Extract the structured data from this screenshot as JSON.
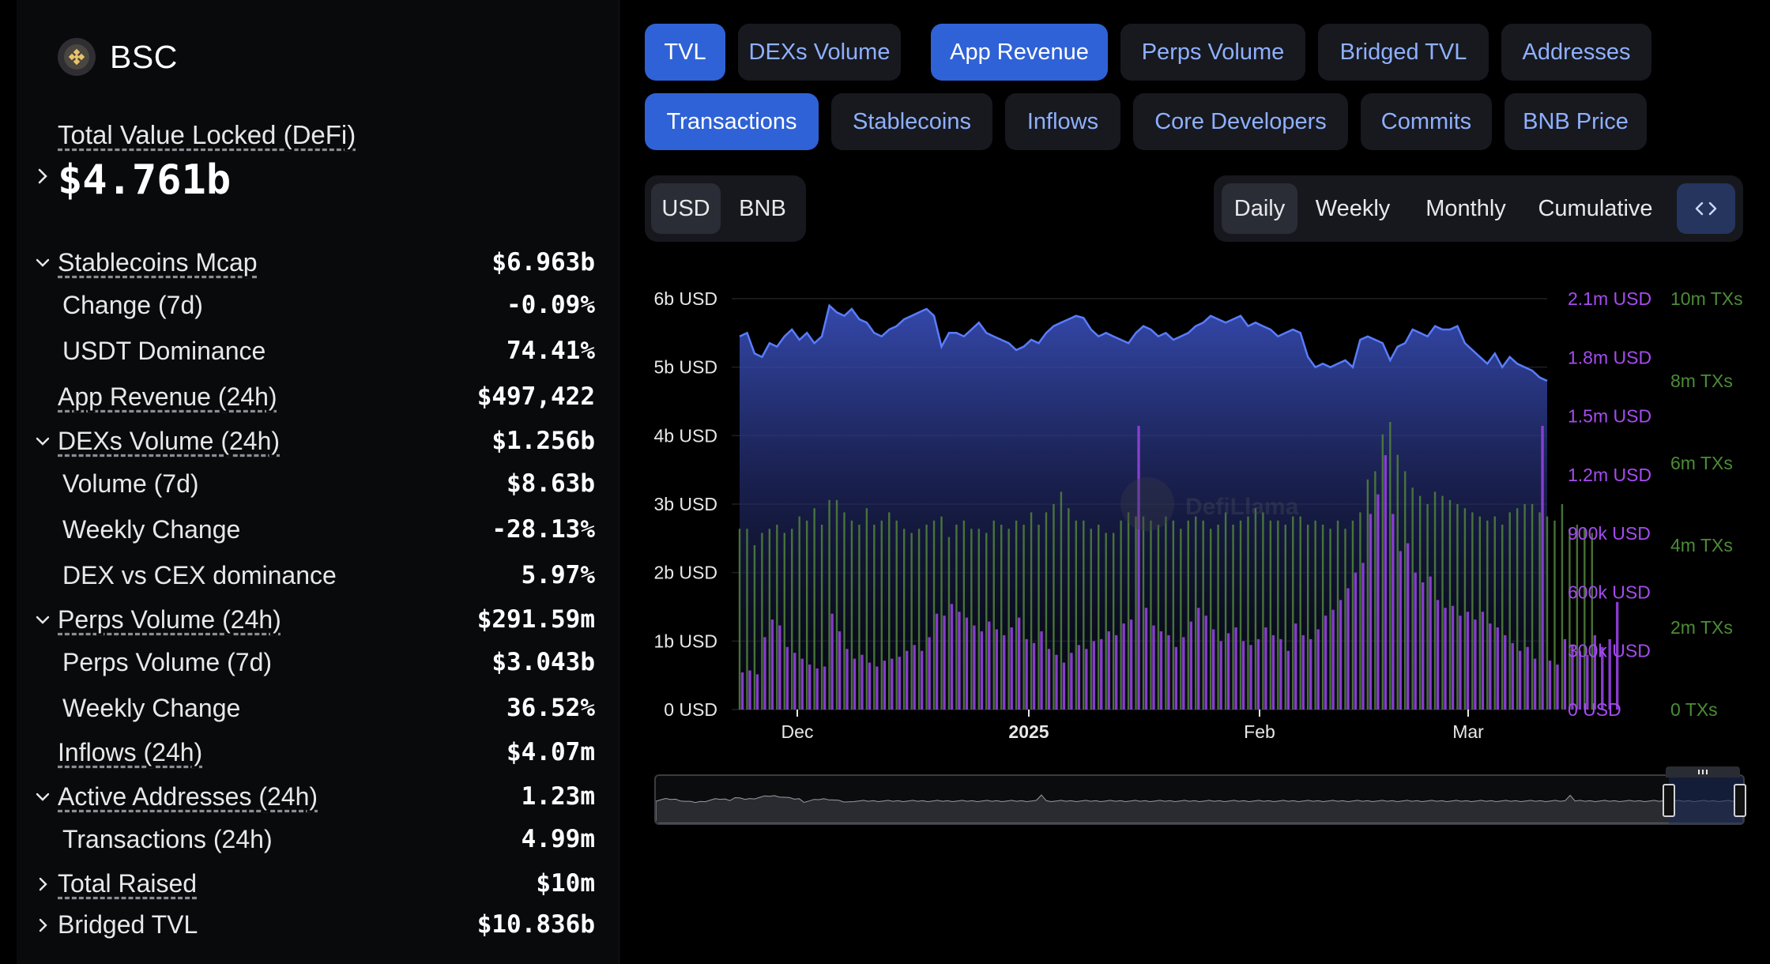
{
  "sidebar": {
    "chain_name": "BSC",
    "tvl_label": "Total Value Locked (DeFi)",
    "tvl_value": "$4.761b",
    "rows": [
      {
        "label": "Stablecoins Mcap",
        "value": "$6.963b",
        "type": "parent-open"
      },
      {
        "label": "Change (7d)",
        "value": "-0.09%",
        "type": "child"
      },
      {
        "label": "USDT Dominance",
        "value": "74.41%",
        "type": "child"
      },
      {
        "label": "App Revenue (24h)",
        "value": "$497,422",
        "type": "plain"
      },
      {
        "label": "DEXs Volume (24h)",
        "value": "$1.256b",
        "type": "parent-open"
      },
      {
        "label": "Volume (7d)",
        "value": "$8.63b",
        "type": "child"
      },
      {
        "label": "Weekly Change",
        "value": "-28.13%",
        "type": "child"
      },
      {
        "label": "DEX vs CEX dominance",
        "value": "5.97%",
        "type": "child"
      },
      {
        "label": "Perps Volume (24h)",
        "value": "$291.59m",
        "type": "parent-open"
      },
      {
        "label": "Perps Volume (7d)",
        "value": "$3.043b",
        "type": "child"
      },
      {
        "label": "Weekly Change",
        "value": "36.52%",
        "type": "child"
      },
      {
        "label": "Inflows (24h)",
        "value": "$4.07m",
        "type": "plain"
      },
      {
        "label": "Active Addresses (24h)",
        "value": "1.23m",
        "type": "parent-open"
      },
      {
        "label": "Transactions (24h)",
        "value": "4.99m",
        "type": "child"
      },
      {
        "label": "Total Raised",
        "value": "$10m",
        "type": "parent-closed"
      },
      {
        "label": "Bridged TVL",
        "value": "$10.836b",
        "type": "parent-closed-plain"
      }
    ]
  },
  "metric_tabs": [
    {
      "label": "TVL",
      "active": true
    },
    {
      "label": "DEXs Volume",
      "active": false
    },
    {
      "label": "App Revenue",
      "active": true
    },
    {
      "label": "Perps Volume",
      "active": false
    },
    {
      "label": "Bridged TVL",
      "active": false
    },
    {
      "label": "Addresses",
      "active": false
    },
    {
      "label": "Transactions",
      "active": true
    },
    {
      "label": "Stablecoins",
      "active": false
    },
    {
      "label": "Inflows",
      "active": false
    },
    {
      "label": "Core Developers",
      "active": false
    },
    {
      "label": "Commits",
      "active": false
    },
    {
      "label": "BNB Price",
      "active": false
    }
  ],
  "denomination": {
    "options": [
      "USD",
      "BNB"
    ],
    "selected": "USD"
  },
  "granularity": {
    "options": [
      "Daily",
      "Weekly",
      "Monthly",
      "Cumulative"
    ],
    "selected": "Daily",
    "embed_icon": "code-icon"
  },
  "colors": {
    "tvl": "#4f6fe8",
    "revenue": "#9b3fe0",
    "transactions": "#4f7d3a",
    "accent": "#2f62d6"
  },
  "chart_data": {
    "type": "area",
    "watermark": "DefiLlama",
    "x_ticks": [
      "Dec",
      "2025",
      "Feb",
      "Mar"
    ],
    "axes": {
      "tvl": {
        "ticks": [
          "0 USD",
          "1b USD",
          "2b USD",
          "3b USD",
          "4b USD",
          "5b USD",
          "6b USD"
        ],
        "ylim": [
          0,
          6000000000
        ]
      },
      "revenue": {
        "ticks": [
          "0 USD",
          "300k USD",
          "600k USD",
          "900k USD",
          "1.2m USD",
          "1.5m USD",
          "1.8m USD",
          "2.1m USD"
        ],
        "ylim": [
          0,
          2100000
        ]
      },
      "transactions": {
        "ticks": [
          "0 TXs",
          "2m TXs",
          "4m TXs",
          "6m TXs",
          "8m TXs",
          "10m TXs"
        ],
        "ylim": [
          0,
          10000000
        ]
      }
    },
    "series": [
      {
        "name": "TVL",
        "unit": "USD",
        "values": [
          5.45,
          5.5,
          5.2,
          5.15,
          5.35,
          5.3,
          5.45,
          5.55,
          5.4,
          5.5,
          5.35,
          5.45,
          5.9,
          5.8,
          5.75,
          5.85,
          5.7,
          5.65,
          5.5,
          5.45,
          5.55,
          5.6,
          5.7,
          5.75,
          5.8,
          5.85,
          5.75,
          5.3,
          5.5,
          5.5,
          5.45,
          5.55,
          5.65,
          5.5,
          5.45,
          5.4,
          5.35,
          5.25,
          5.3,
          5.4,
          5.35,
          5.5,
          5.6,
          5.65,
          5.7,
          5.75,
          5.72,
          5.55,
          5.45,
          5.5,
          5.45,
          5.4,
          5.35,
          5.5,
          5.6,
          5.55,
          5.45,
          5.5,
          5.4,
          5.45,
          5.5,
          5.6,
          5.65,
          5.75,
          5.7,
          5.65,
          5.7,
          5.75,
          5.6,
          5.65,
          5.6,
          5.55,
          5.45,
          5.5,
          5.55,
          5.5,
          5.15,
          5.0,
          5.05,
          5.0,
          5.05,
          5.1,
          5.0,
          5.4,
          5.45,
          5.4,
          5.35,
          5.1,
          5.3,
          5.35,
          5.55,
          5.5,
          5.45,
          5.6,
          5.55,
          5.55,
          5.6,
          5.35,
          5.25,
          5.15,
          5.05,
          5.2,
          5.0,
          5.15,
          5.05,
          5.0,
          4.95,
          4.85,
          4.8
        ]
      },
      {
        "name": "App Revenue",
        "unit": "USD",
        "values": [
          190,
          200,
          180,
          370,
          460,
          430,
          320,
          290,
          260,
          230,
          210,
          220,
          490,
          400,
          310,
          260,
          280,
          240,
          220,
          250,
          260,
          270,
          300,
          330,
          300,
          370,
          490,
          480,
          540,
          500,
          470,
          430,
          400,
          450,
          410,
          380,
          420,
          470,
          360,
          340,
          400,
          310,
          280,
          240,
          290,
          330,
          310,
          350,
          360,
          400,
          380,
          440,
          460,
          1450,
          520,
          430,
          400,
          380,
          320,
          370,
          450,
          520,
          480,
          410,
          350,
          390,
          420,
          350,
          330,
          360,
          420,
          380,
          360,
          300,
          440,
          380,
          360,
          410,
          480,
          510,
          560,
          620,
          700,
          750,
          1000,
          1100,
          1300,
          1000,
          810,
          850,
          700,
          650,
          680,
          560,
          520,
          530,
          480,
          500,
          460,
          500,
          440,
          420,
          380,
          340,
          300,
          320,
          260,
          1450,
          250,
          230,
          360,
          330,
          300,
          280,
          380,
          320,
          360,
          550
        ]
      },
      {
        "name": "Transactions",
        "unit": "TXs",
        "values": [
          4.4,
          4.4,
          4.0,
          4.3,
          4.4,
          4.5,
          4.3,
          4.4,
          4.7,
          4.6,
          4.9,
          4.5,
          5.1,
          5.1,
          4.8,
          4.6,
          4.5,
          4.9,
          4.5,
          4.6,
          4.8,
          4.6,
          4.4,
          4.3,
          4.4,
          4.5,
          4.6,
          4.7,
          4.2,
          4.5,
          4.6,
          4.4,
          4.4,
          4.3,
          4.6,
          4.5,
          4.4,
          4.6,
          4.5,
          4.8,
          4.5,
          4.8,
          5.0,
          5.3,
          4.9,
          4.6,
          4.6,
          4.4,
          4.5,
          4.3,
          4.3,
          4.6,
          4.8,
          4.7,
          4.7,
          4.6,
          4.5,
          4.7,
          4.6,
          4.4,
          4.6,
          4.7,
          4.6,
          4.4,
          4.5,
          4.8,
          4.5,
          4.6,
          4.7,
          4.9,
          4.8,
          4.6,
          4.6,
          4.5,
          4.7,
          4.7,
          4.5,
          4.6,
          4.5,
          4.4,
          4.6,
          4.4,
          4.6,
          4.8,
          5.6,
          5.8,
          6.7,
          7.0,
          6.2,
          5.8,
          5.4,
          5.2,
          5.0,
          5.3,
          5.2,
          5.1,
          5.0,
          4.9,
          4.8,
          4.7,
          4.6,
          4.7,
          4.5,
          4.8,
          4.9,
          5.0,
          5.0,
          4.8,
          4.7,
          4.6,
          5.0,
          4.4,
          4.5,
          4.4,
          4.3
        ]
      }
    ]
  }
}
